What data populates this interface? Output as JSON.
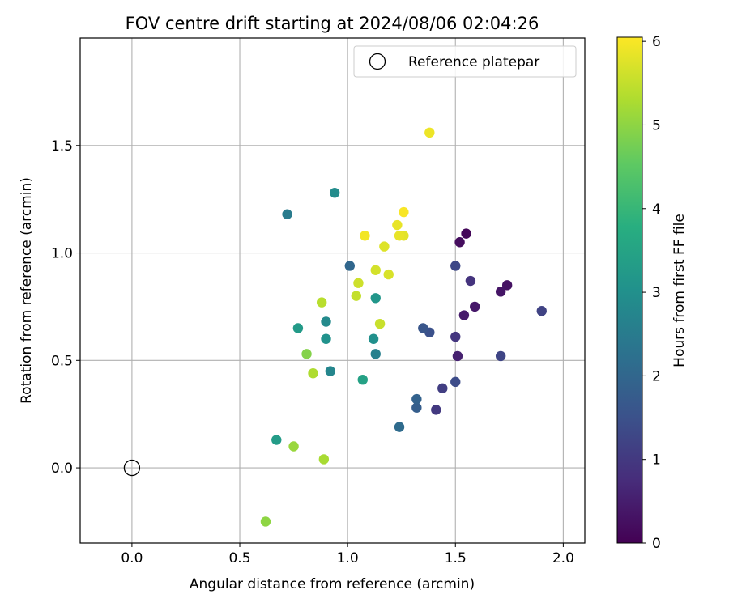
{
  "chart_data": {
    "type": "scatter",
    "title": "FOV centre drift starting at 2024/08/06 02:04:26",
    "xlabel": "Angular distance from reference (arcmin)",
    "ylabel": "Rotation from reference (arcmin)",
    "xlim": [
      -0.24,
      2.1
    ],
    "ylim": [
      -0.35,
      2.0
    ],
    "xticks": [
      0.0,
      0.5,
      1.0,
      1.5,
      2.0
    ],
    "xtick_labels": [
      "0.0",
      "0.5",
      "1.0",
      "1.5",
      "2.0"
    ],
    "yticks": [
      0.0,
      0.5,
      1.0,
      1.5
    ],
    "ytick_labels": [
      "0.0",
      "0.5",
      "1.0",
      "1.5"
    ],
    "grid": true,
    "legend": {
      "entries": [
        "Reference platepar"
      ],
      "location": "upper right"
    },
    "reference_point": {
      "x": 0.0,
      "y": 0.0
    },
    "colorbar": {
      "label": "Hours from first FF file",
      "colormap": "viridis",
      "range": [
        0,
        6.05
      ],
      "ticks": [
        0,
        1,
        2,
        3,
        4,
        5,
        6
      ],
      "tick_labels": [
        "0",
        "1",
        "2",
        "3",
        "4",
        "5",
        "6"
      ]
    },
    "points": [
      {
        "x": 1.55,
        "y": 1.09,
        "c": 0.1
      },
      {
        "x": 1.52,
        "y": 1.05,
        "c": 0.2
      },
      {
        "x": 1.74,
        "y": 0.85,
        "c": 0.3
      },
      {
        "x": 1.71,
        "y": 0.82,
        "c": 0.35
      },
      {
        "x": 1.59,
        "y": 0.75,
        "c": 0.4
      },
      {
        "x": 1.54,
        "y": 0.71,
        "c": 0.45
      },
      {
        "x": 1.51,
        "y": 0.52,
        "c": 0.55
      },
      {
        "x": 1.57,
        "y": 0.87,
        "c": 0.9
      },
      {
        "x": 1.5,
        "y": 0.61,
        "c": 0.95
      },
      {
        "x": 1.41,
        "y": 0.27,
        "c": 1.0
      },
      {
        "x": 1.44,
        "y": 0.37,
        "c": 1.1
      },
      {
        "x": 1.9,
        "y": 0.73,
        "c": 1.2
      },
      {
        "x": 1.71,
        "y": 0.52,
        "c": 1.25
      },
      {
        "x": 1.5,
        "y": 0.94,
        "c": 1.3
      },
      {
        "x": 1.5,
        "y": 0.4,
        "c": 1.4
      },
      {
        "x": 1.38,
        "y": 0.63,
        "c": 1.5
      },
      {
        "x": 1.35,
        "y": 0.65,
        "c": 1.6
      },
      {
        "x": 1.32,
        "y": 0.28,
        "c": 1.8
      },
      {
        "x": 1.32,
        "y": 0.32,
        "c": 1.9
      },
      {
        "x": 1.01,
        "y": 0.94,
        "c": 2.0
      },
      {
        "x": 1.24,
        "y": 0.19,
        "c": 2.1
      },
      {
        "x": 0.72,
        "y": 1.18,
        "c": 2.5
      },
      {
        "x": 1.13,
        "y": 0.53,
        "c": 2.6
      },
      {
        "x": 0.92,
        "y": 0.45,
        "c": 2.75
      },
      {
        "x": 0.9,
        "y": 0.68,
        "c": 2.85
      },
      {
        "x": 0.94,
        "y": 1.28,
        "c": 2.9
      },
      {
        "x": 1.12,
        "y": 0.6,
        "c": 3.0
      },
      {
        "x": 0.9,
        "y": 0.6,
        "c": 3.05
      },
      {
        "x": 1.13,
        "y": 0.79,
        "c": 3.15
      },
      {
        "x": 0.77,
        "y": 0.65,
        "c": 3.25
      },
      {
        "x": 0.67,
        "y": 0.13,
        "c": 3.3
      },
      {
        "x": 1.07,
        "y": 0.41,
        "c": 3.45
      },
      {
        "x": 0.81,
        "y": 0.53,
        "c": 4.9
      },
      {
        "x": 0.62,
        "y": -0.25,
        "c": 5.0
      },
      {
        "x": 0.75,
        "y": 0.1,
        "c": 5.1
      },
      {
        "x": 0.89,
        "y": 0.04,
        "c": 5.25
      },
      {
        "x": 0.84,
        "y": 0.44,
        "c": 5.3
      },
      {
        "x": 0.88,
        "y": 0.77,
        "c": 5.4
      },
      {
        "x": 1.04,
        "y": 0.8,
        "c": 5.5
      },
      {
        "x": 1.15,
        "y": 0.67,
        "c": 5.55
      },
      {
        "x": 1.05,
        "y": 0.86,
        "c": 5.6
      },
      {
        "x": 1.13,
        "y": 0.92,
        "c": 5.65
      },
      {
        "x": 1.19,
        "y": 0.9,
        "c": 5.7
      },
      {
        "x": 1.17,
        "y": 1.03,
        "c": 5.75
      },
      {
        "x": 1.26,
        "y": 1.08,
        "c": 5.8
      },
      {
        "x": 1.23,
        "y": 1.13,
        "c": 5.85
      },
      {
        "x": 1.24,
        "y": 1.08,
        "c": 5.85
      },
      {
        "x": 1.38,
        "y": 1.56,
        "c": 5.9
      },
      {
        "x": 1.08,
        "y": 1.08,
        "c": 5.95
      },
      {
        "x": 1.26,
        "y": 1.19,
        "c": 6.0
      }
    ]
  }
}
